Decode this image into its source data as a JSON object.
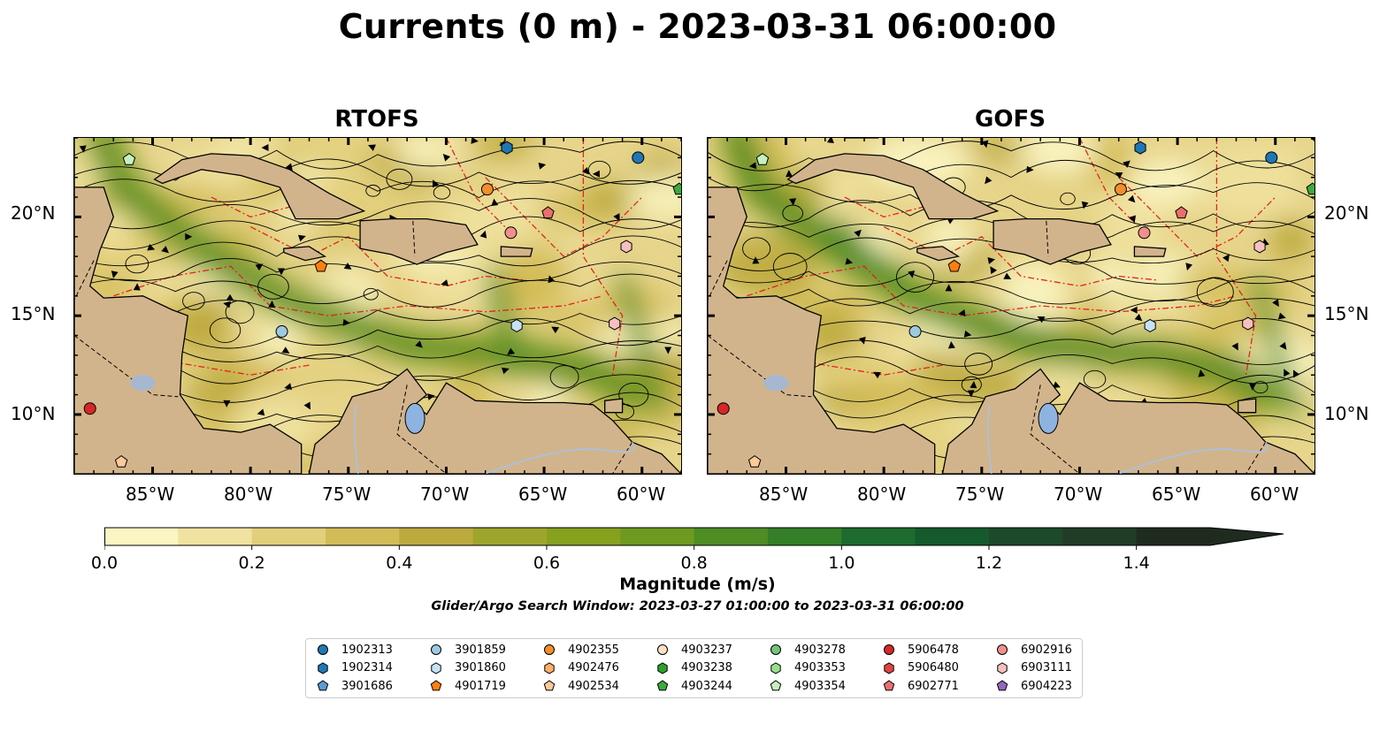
{
  "title": "Currents (0 m) - 2023-03-31 06:00:00",
  "panels": [
    {
      "title": "RTOFS"
    },
    {
      "title": "GOFS"
    }
  ],
  "axes": {
    "lon_ticks": [
      "85°W",
      "80°W",
      "75°W",
      "70°W",
      "65°W",
      "60°W"
    ],
    "lat_ticks": [
      "20°N",
      "15°N",
      "10°N"
    ],
    "lon_range": [
      -89,
      -58
    ],
    "lat_range": [
      7,
      24
    ]
  },
  "colorbar": {
    "label": "Magnitude (m/s)",
    "ticks": [
      "0.0",
      "0.2",
      "0.4",
      "0.6",
      "0.8",
      "1.0",
      "1.2",
      "1.4"
    ],
    "range": [
      0,
      1.5
    ],
    "extend": "max",
    "colors": [
      "#fbf5c3",
      "#f0e2a0",
      "#e2cf7b",
      "#d3bc57",
      "#bcaa3e",
      "#9ea52c",
      "#86a11e",
      "#6d9a20",
      "#4e8c24",
      "#347f28",
      "#1d6b2e",
      "#145a2c",
      "#1c4a2a",
      "#203c26",
      "#1f2b1e"
    ]
  },
  "search_window": "Glider/Argo Search Window: 2023-03-27 01:00:00 to 2023-03-31 06:00:00",
  "legend": {
    "items": [
      {
        "id": "1902313",
        "color": "#1f77b4",
        "marker": "circle"
      },
      {
        "id": "1902314",
        "color": "#1f77b4",
        "marker": "hexagon"
      },
      {
        "id": "3901686",
        "color": "#5b9bd5",
        "marker": "pentagon"
      },
      {
        "id": "3901859",
        "color": "#9ecae1",
        "marker": "circle"
      },
      {
        "id": "3901860",
        "color": "#c6e2f5",
        "marker": "hexagon"
      },
      {
        "id": "4901719",
        "color": "#ff7f0e",
        "marker": "pentagon"
      },
      {
        "id": "4902355",
        "color": "#f28e2b",
        "marker": "circle"
      },
      {
        "id": "4902476",
        "color": "#ffae66",
        "marker": "hexagon"
      },
      {
        "id": "4902534",
        "color": "#ffc999",
        "marker": "pentagon"
      },
      {
        "id": "4903237",
        "color": "#fde0c5",
        "marker": "circle"
      },
      {
        "id": "4903238",
        "color": "#2ca02c",
        "marker": "hexagon"
      },
      {
        "id": "4903244",
        "color": "#3caa3c",
        "marker": "pentagon"
      },
      {
        "id": "4903278",
        "color": "#74c476",
        "marker": "circle"
      },
      {
        "id": "4903353",
        "color": "#98df8a",
        "marker": "hexagon"
      },
      {
        "id": "4903354",
        "color": "#c7f0c0",
        "marker": "pentagon"
      },
      {
        "id": "5906478",
        "color": "#d62728",
        "marker": "circle"
      },
      {
        "id": "5906480",
        "color": "#e0433f",
        "marker": "hexagon"
      },
      {
        "id": "6902771",
        "color": "#e9706e",
        "marker": "pentagon"
      },
      {
        "id": "6902916",
        "color": "#f08f8d",
        "marker": "circle"
      },
      {
        "id": "6903111",
        "color": "#f7c0c0",
        "marker": "hexagon"
      },
      {
        "id": "6904223",
        "color": "#9467bd",
        "marker": "pentagon"
      }
    ]
  },
  "floats": [
    {
      "id": "1902314",
      "lon": -66.9,
      "lat": 23.5
    },
    {
      "id": "1902313",
      "lon": -60.2,
      "lat": 23.0
    },
    {
      "id": "4903244",
      "lon": -58.1,
      "lat": 21.4
    },
    {
      "id": "4903354",
      "lon": -86.2,
      "lat": 22.9
    },
    {
      "id": "4902355",
      "lon": -67.9,
      "lat": 21.4
    },
    {
      "id": "6902771",
      "lon": -64.8,
      "lat": 20.2
    },
    {
      "id": "6902916",
      "lon": -66.7,
      "lat": 19.2
    },
    {
      "id": "6903111",
      "lon": -60.8,
      "lat": 18.5
    },
    {
      "id": "4901719",
      "lon": -76.4,
      "lat": 17.5
    },
    {
      "id": "3901859",
      "lon": -78.4,
      "lat": 14.2
    },
    {
      "id": "3901860",
      "lon": -66.4,
      "lat": 14.5
    },
    {
      "id": "6903111",
      "lon": -61.4,
      "lat": 14.6
    },
    {
      "id": "5906478",
      "lon": -88.2,
      "lat": 10.3
    },
    {
      "id": "4902534",
      "lon": -86.6,
      "lat": 7.6
    }
  ]
}
